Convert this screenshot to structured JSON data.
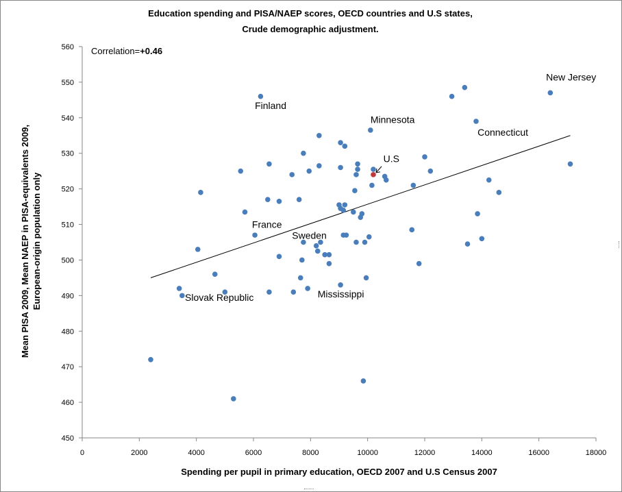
{
  "chart_data": {
    "type": "scatter",
    "title": [
      "Education spending and PISA/NAEP scores, OECD countries and U.S states,",
      "Crude demographic adjustment."
    ],
    "xlabel": "Spending per pupil in primary education, OECD 2007 and U.S Census 2007",
    "ylabel": [
      "Mean PISA 2009, Mean NAEP in PISA-equivalents 2009,",
      "European-origin population only"
    ],
    "xlim": [
      0,
      18000
    ],
    "ylim": [
      450,
      560
    ],
    "xticks": [
      0,
      2000,
      4000,
      6000,
      8000,
      10000,
      12000,
      14000,
      16000,
      18000
    ],
    "yticks": [
      450,
      460,
      470,
      480,
      490,
      500,
      510,
      520,
      530,
      540,
      550,
      560
    ],
    "grid": false,
    "correlation": {
      "label": "Correlation=",
      "value": "+0.46"
    },
    "trendline": {
      "x": [
        2400,
        17100
      ],
      "y": [
        495,
        535
      ]
    },
    "colors": {
      "points": "#4a7ebb",
      "highlight": "#c0393b",
      "line": "#000000"
    },
    "points": [
      {
        "x": 2400,
        "y": 472
      },
      {
        "x": 3400,
        "y": 492
      },
      {
        "x": 3500,
        "y": 490
      },
      {
        "x": 4050,
        "y": 503
      },
      {
        "x": 4150,
        "y": 519
      },
      {
        "x": 4650,
        "y": 496
      },
      {
        "x": 5000,
        "y": 491
      },
      {
        "x": 5300,
        "y": 461
      },
      {
        "x": 5550,
        "y": 525
      },
      {
        "x": 5700,
        "y": 513.5
      },
      {
        "x": 6050,
        "y": 507
      },
      {
        "x": 6250,
        "y": 546
      },
      {
        "x": 6500,
        "y": 517
      },
      {
        "x": 6550,
        "y": 527
      },
      {
        "x": 6550,
        "y": 491
      },
      {
        "x": 6900,
        "y": 501
      },
      {
        "x": 6900,
        "y": 516.5
      },
      {
        "x": 7350,
        "y": 524
      },
      {
        "x": 7400,
        "y": 491
      },
      {
        "x": 7600,
        "y": 517
      },
      {
        "x": 7650,
        "y": 495
      },
      {
        "x": 7700,
        "y": 500
      },
      {
        "x": 7750,
        "y": 505
      },
      {
        "x": 7750,
        "y": 530
      },
      {
        "x": 7900,
        "y": 492
      },
      {
        "x": 7950,
        "y": 525
      },
      {
        "x": 8200,
        "y": 504
      },
      {
        "x": 8250,
        "y": 502.5
      },
      {
        "x": 8300,
        "y": 535
      },
      {
        "x": 8300,
        "y": 526.5
      },
      {
        "x": 8350,
        "y": 505
      },
      {
        "x": 8500,
        "y": 501.5
      },
      {
        "x": 8650,
        "y": 499
      },
      {
        "x": 8650,
        "y": 501.5
      },
      {
        "x": 9000,
        "y": 515.5
      },
      {
        "x": 9050,
        "y": 533
      },
      {
        "x": 9050,
        "y": 526
      },
      {
        "x": 9050,
        "y": 514.5
      },
      {
        "x": 9050,
        "y": 493
      },
      {
        "x": 9150,
        "y": 514
      },
      {
        "x": 9150,
        "y": 507
      },
      {
        "x": 9200,
        "y": 515.5
      },
      {
        "x": 9200,
        "y": 532
      },
      {
        "x": 9250,
        "y": 507
      },
      {
        "x": 9500,
        "y": 513.5
      },
      {
        "x": 9550,
        "y": 519.5
      },
      {
        "x": 9600,
        "y": 524
      },
      {
        "x": 9600,
        "y": 505
      },
      {
        "x": 9650,
        "y": 527
      },
      {
        "x": 9650,
        "y": 525.5
      },
      {
        "x": 9750,
        "y": 512
      },
      {
        "x": 9800,
        "y": 513
      },
      {
        "x": 9850,
        "y": 466
      },
      {
        "x": 9900,
        "y": 505
      },
      {
        "x": 9950,
        "y": 495
      },
      {
        "x": 10050,
        "y": 506.5
      },
      {
        "x": 10100,
        "y": 536.5
      },
      {
        "x": 10150,
        "y": 521
      },
      {
        "x": 10200,
        "y": 525.5
      },
      {
        "x": 10200,
        "y": 524,
        "highlight": true
      },
      {
        "x": 10600,
        "y": 523.5
      },
      {
        "x": 10650,
        "y": 522.5
      },
      {
        "x": 11550,
        "y": 508.5
      },
      {
        "x": 11600,
        "y": 521
      },
      {
        "x": 11800,
        "y": 499
      },
      {
        "x": 12000,
        "y": 529
      },
      {
        "x": 12200,
        "y": 525
      },
      {
        "x": 12950,
        "y": 546
      },
      {
        "x": 13400,
        "y": 548.5
      },
      {
        "x": 13500,
        "y": 504.5
      },
      {
        "x": 13800,
        "y": 539
      },
      {
        "x": 13850,
        "y": 513
      },
      {
        "x": 14000,
        "y": 506
      },
      {
        "x": 14250,
        "y": 522.5
      },
      {
        "x": 14600,
        "y": 519
      },
      {
        "x": 16400,
        "y": 547
      },
      {
        "x": 17100,
        "y": 527
      }
    ],
    "annotations": [
      {
        "text": "Finland",
        "x": 6050,
        "y": 542.5
      },
      {
        "text": "Minnesota",
        "x": 10100,
        "y": 538.5
      },
      {
        "text": "New Jersey",
        "x": 16250,
        "y": 550.5
      },
      {
        "text": "Connecticut",
        "x": 13850,
        "y": 535
      },
      {
        "text": "U.S",
        "x": 10550,
        "y": 527.5
      },
      {
        "text": "France",
        "x": 5950,
        "y": 509
      },
      {
        "text": "Sweden",
        "x": 7350,
        "y": 506
      },
      {
        "text": "Slovak Republic",
        "x": 3600,
        "y": 488.5
      },
      {
        "text": "Mississippi",
        "x": 8250,
        "y": 489.5
      }
    ]
  }
}
